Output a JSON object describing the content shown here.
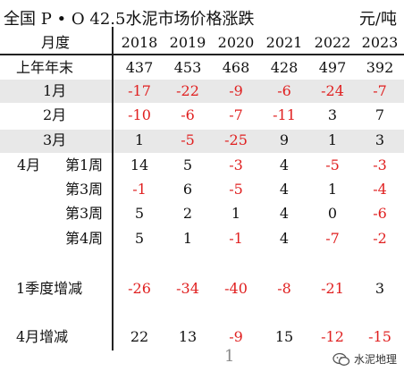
{
  "header": {
    "title": "全国 P • O 42.5水泥市场价格涨跌",
    "unit": "元/吨",
    "row_label_header": "月度",
    "years": [
      "2018",
      "2019",
      "2020",
      "2021",
      "2022",
      "2023"
    ]
  },
  "rows": [
    {
      "label": "上年年末",
      "values": [
        "437",
        "453",
        "468",
        "428",
        "497",
        "392"
      ]
    },
    {
      "label": "1月",
      "values": [
        "-17",
        "-22",
        "-9",
        "-6",
        "-24",
        "-7"
      ]
    },
    {
      "label": "2月",
      "values": [
        "-10",
        "-6",
        "-7",
        "-11",
        "3",
        "7"
      ]
    },
    {
      "label": "3月",
      "values": [
        "1",
        "-5",
        "-25",
        "9",
        "1",
        "3"
      ]
    },
    {
      "label": "4月",
      "sub": "第1周",
      "values": [
        "14",
        "5",
        "-3",
        "4",
        "-5",
        "-3"
      ]
    },
    {
      "label": "",
      "sub": "第3周",
      "values": [
        "-1",
        "6",
        "-5",
        "4",
        "1",
        "-4"
      ]
    },
    {
      "label": "",
      "sub": "第3周",
      "values": [
        "5",
        "2",
        "1",
        "4",
        "0",
        "-6"
      ]
    },
    {
      "label": "",
      "sub": "第4周",
      "values": [
        "5",
        "1",
        "-1",
        "4",
        "-7",
        "-2"
      ]
    },
    {
      "label": "1季度增减",
      "values": [
        "-26",
        "-34",
        "-40",
        "-8",
        "-21",
        "3"
      ]
    },
    {
      "label": "4月增减",
      "values": [
        "22",
        "13",
        "-9",
        "15",
        "-12",
        "-15"
      ]
    }
  ],
  "page_number": "1",
  "watermark": {
    "text": "水泥地理",
    "icon": "wechat-icon"
  },
  "colors": {
    "negative": "#e02020",
    "band": "#e8e8e8"
  }
}
